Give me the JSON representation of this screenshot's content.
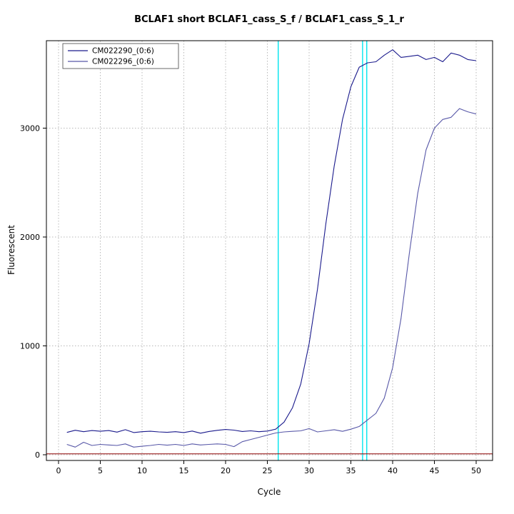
{
  "title": "BCLAF1 short BCLAF1_cass_S_f / BCLAF1_cass_S_1_r",
  "axes": {
    "x_label": "Cycle",
    "y_label": "Fluorescent",
    "x_ticks": [
      0,
      5,
      10,
      15,
      20,
      25,
      30,
      35,
      40,
      45,
      50
    ],
    "y_ticks": [
      0,
      1000,
      2000,
      3000
    ]
  },
  "legend": {
    "position": "top-left",
    "entries": [
      {
        "label": "CM022290_(0:6)",
        "color": "#1a1a8c"
      },
      {
        "label": "CM022296_(0:6)",
        "color": "#5858a8"
      }
    ]
  },
  "colors": {
    "cyan_threshold": "#00e5ee",
    "dark_red_baseline": "#8b0000",
    "grid": "#b8b8b8",
    "frame": "#000000"
  },
  "chart_data": {
    "type": "line",
    "title": "BCLAF1 short BCLAF1_cass_S_f / BCLAF1_cass_S_1_r",
    "xlabel": "Cycle",
    "ylabel": "Fluorescent",
    "xlim": [
      0,
      50
    ],
    "ylim": [
      0,
      3800
    ],
    "grid": true,
    "legend_position": "top-left",
    "x": [
      1,
      2,
      3,
      4,
      5,
      6,
      7,
      8,
      9,
      10,
      11,
      12,
      13,
      14,
      15,
      16,
      17,
      18,
      19,
      20,
      21,
      22,
      23,
      24,
      25,
      26,
      27,
      28,
      29,
      30,
      31,
      32,
      33,
      34,
      35,
      36,
      37,
      38,
      39,
      40,
      41,
      42,
      43,
      44,
      45,
      46,
      47,
      48,
      49,
      50
    ],
    "series": [
      {
        "name": "CM022290_(0:6)",
        "color": "#1a1a8c",
        "values": [
          205,
          225,
          212,
          222,
          216,
          222,
          208,
          230,
          204,
          212,
          216,
          210,
          206,
          212,
          204,
          218,
          198,
          214,
          224,
          232,
          226,
          214,
          220,
          212,
          218,
          235,
          300,
          430,
          650,
          1020,
          1520,
          2120,
          2650,
          3080,
          3380,
          3560,
          3600,
          3610,
          3670,
          3720,
          3650,
          3660,
          3670,
          3630,
          3650,
          3610,
          3690,
          3670,
          3630,
          3620
        ]
      },
      {
        "name": "CM022296_(0:6)",
        "color": "#5858a8",
        "values": [
          95,
          70,
          115,
          85,
          95,
          90,
          85,
          100,
          70,
          78,
          85,
          95,
          88,
          95,
          85,
          100,
          90,
          95,
          100,
          95,
          75,
          120,
          140,
          160,
          180,
          200,
          210,
          215,
          220,
          240,
          210,
          220,
          230,
          215,
          235,
          260,
          320,
          380,
          520,
          800,
          1250,
          1850,
          2400,
          2800,
          3000,
          3080,
          3100,
          3180,
          3150,
          3130
        ]
      }
    ],
    "threshold_lines": {
      "vertical_cyan_x": [
        26.3,
        36.4,
        36.9
      ],
      "horizontal_darkred_y": 8
    }
  }
}
